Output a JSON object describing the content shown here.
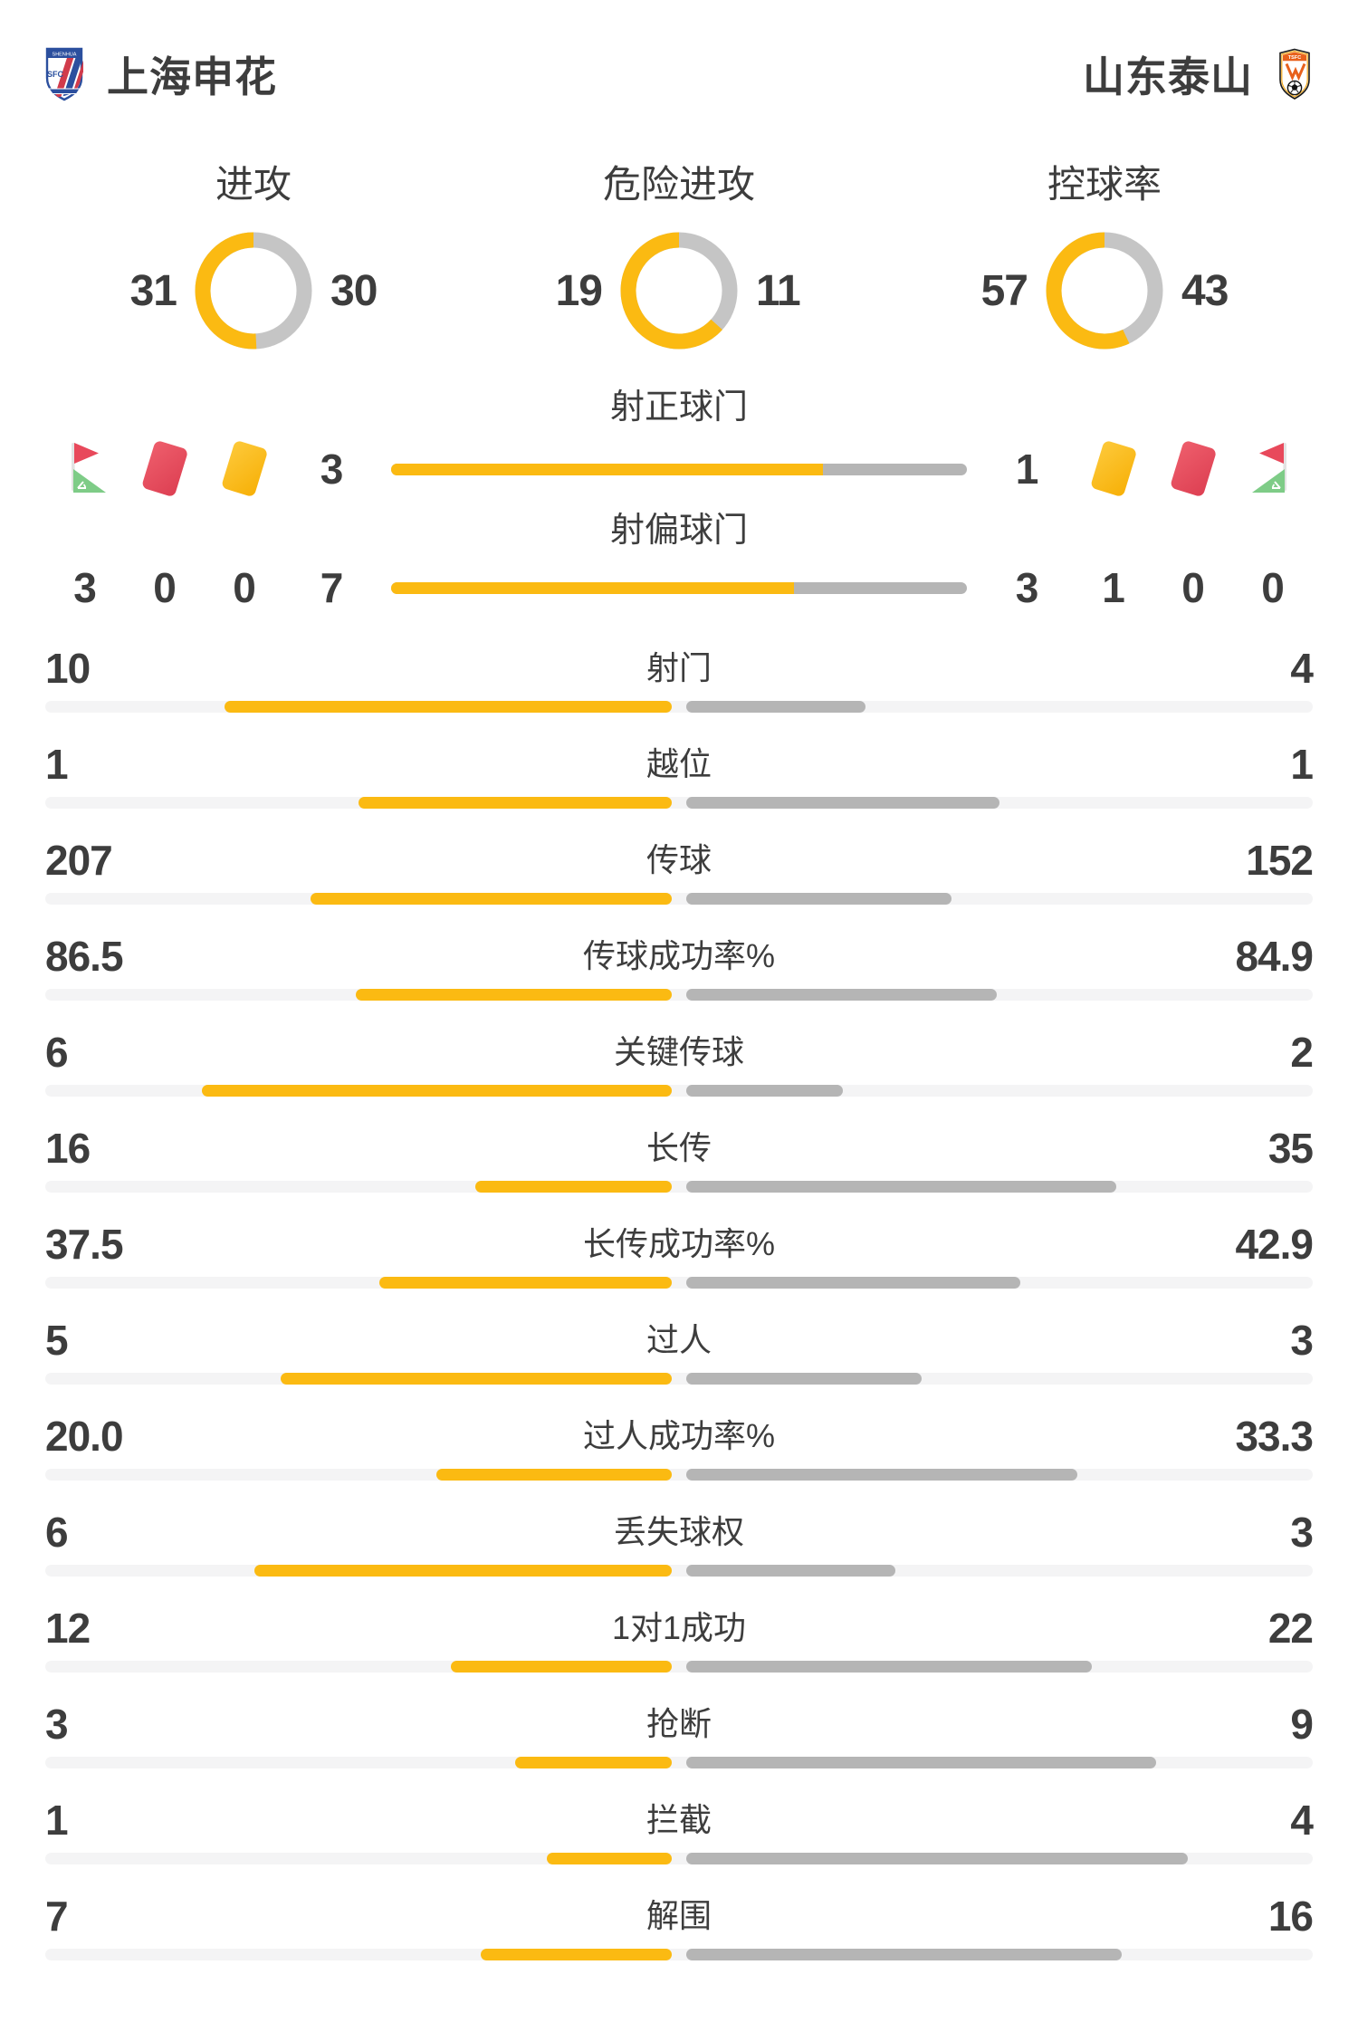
{
  "teams": {
    "home": {
      "name": "上海申花"
    },
    "away": {
      "name": "山东泰山"
    }
  },
  "donut_stats": [
    {
      "label": "进攻",
      "home": "31",
      "away": "30"
    },
    {
      "label": "危险进攻",
      "home": "19",
      "away": "11"
    },
    {
      "label": "控球率",
      "home": "57",
      "away": "43"
    }
  ],
  "shot_stats": [
    {
      "label": "射正球门",
      "home": "3",
      "away": "1"
    },
    {
      "label": "射偏球门",
      "home": "7",
      "away": "3"
    }
  ],
  "cards": {
    "home": {
      "corner": "3",
      "red": "0",
      "yellow": "0"
    },
    "away": {
      "corner": "0",
      "red": "0",
      "yellow": "1"
    }
  },
  "stats": [
    {
      "label": "射门",
      "home": "10",
      "away": "4"
    },
    {
      "label": "越位",
      "home": "1",
      "away": "1"
    },
    {
      "label": "传球",
      "home": "207",
      "away": "152"
    },
    {
      "label": "传球成功率%",
      "home": "86.5",
      "away": "84.9"
    },
    {
      "label": "关键传球",
      "home": "6",
      "away": "2"
    },
    {
      "label": "长传",
      "home": "16",
      "away": "35"
    },
    {
      "label": "长传成功率%",
      "home": "37.5",
      "away": "42.9"
    },
    {
      "label": "过人",
      "home": "5",
      "away": "3"
    },
    {
      "label": "过人成功率%",
      "home": "20.0",
      "away": "33.3"
    },
    {
      "label": "丢失球权",
      "home": "6",
      "away": "3"
    },
    {
      "label": "1对1成功",
      "home": "12",
      "away": "22"
    },
    {
      "label": "抢断",
      "home": "3",
      "away": "9"
    },
    {
      "label": "拦截",
      "home": "1",
      "away": "4"
    },
    {
      "label": "解围",
      "home": "7",
      "away": "16"
    }
  ],
  "colors": {
    "home_fill": "#FBBA12",
    "away_fill": "#B5B5B5",
    "track": "#F4F4F5",
    "donut_away": "#C5C5C5",
    "text": "#3D3D3D",
    "red_card": "#E8495B",
    "yellow_card": "#FBBB1D",
    "flag_red": "#E8495B",
    "flag_green": "#7ECC87"
  },
  "chart_data": [
    {
      "type": "pie",
      "title": "进攻",
      "legend": [
        "上海申花",
        "山东泰山"
      ],
      "values": [
        31,
        30
      ],
      "colors": [
        "#FBBA12",
        "#C5C5C5"
      ]
    },
    {
      "type": "pie",
      "title": "危险进攻",
      "legend": [
        "上海申花",
        "山东泰山"
      ],
      "values": [
        19,
        11
      ],
      "colors": [
        "#FBBA12",
        "#C5C5C5"
      ]
    },
    {
      "type": "pie",
      "title": "控球率",
      "legend": [
        "上海申花",
        "山东泰山"
      ],
      "values": [
        57,
        43
      ],
      "colors": [
        "#FBBA12",
        "#C5C5C5"
      ]
    },
    {
      "type": "bar",
      "title": "上海申花 vs 山东泰山 比赛数据",
      "categories": [
        "射正球门",
        "射偏球门",
        "角球",
        "红牌",
        "黄牌",
        "射门",
        "越位",
        "传球",
        "传球成功率%",
        "关键传球",
        "长传",
        "长传成功率%",
        "过人",
        "过人成功率%",
        "丢失球权",
        "1对1成功",
        "抢断",
        "拦截",
        "解围"
      ],
      "series": [
        {
          "name": "上海申花",
          "values": [
            3,
            7,
            3,
            0,
            0,
            10,
            1,
            207,
            86.5,
            6,
            16,
            37.5,
            5,
            20.0,
            6,
            12,
            3,
            1,
            7
          ]
        },
        {
          "name": "山东泰山",
          "values": [
            1,
            3,
            0,
            0,
            1,
            4,
            1,
            152,
            84.9,
            2,
            35,
            42.9,
            3,
            33.3,
            3,
            22,
            9,
            4,
            16
          ]
        }
      ],
      "legend_position": "none",
      "grid": false
    }
  ]
}
